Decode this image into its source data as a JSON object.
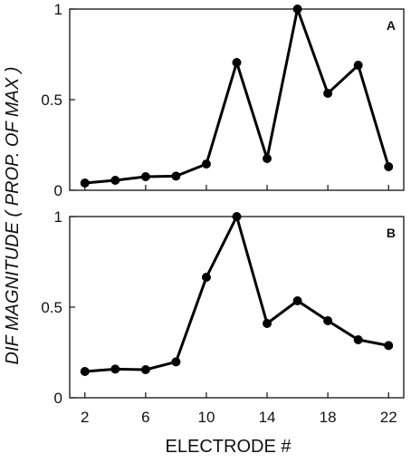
{
  "chart_data": [
    {
      "type": "line",
      "panel_label": "A",
      "x": [
        2,
        4,
        6,
        8,
        10,
        12,
        14,
        16,
        18,
        20,
        22
      ],
      "series": [
        {
          "values": [
            0.04,
            0.055,
            0.075,
            0.078,
            0.145,
            0.705,
            0.175,
            1.0,
            0.535,
            0.69,
            0.13
          ]
        }
      ],
      "xlim": [
        1,
        23
      ],
      "ylim": [
        0,
        1
      ],
      "yticks": [
        "0",
        "0.5",
        "1"
      ],
      "xticks": [],
      "grid": false,
      "color": "#000000"
    },
    {
      "type": "line",
      "panel_label": "B",
      "x": [
        2,
        4,
        6,
        8,
        10,
        12,
        14,
        16,
        18,
        20,
        22
      ],
      "series": [
        {
          "values": [
            0.145,
            0.158,
            0.155,
            0.198,
            0.665,
            1.0,
            0.41,
            0.535,
            0.425,
            0.32,
            0.288
          ]
        }
      ],
      "xlim": [
        1,
        23
      ],
      "ylim": [
        0,
        1
      ],
      "yticks": [
        "0",
        "0.5",
        "1"
      ],
      "xticks": [
        "2",
        "6",
        "10",
        "14",
        "18",
        "22"
      ],
      "grid": false,
      "color": "#000000"
    }
  ],
  "ylabel": "DIF MAGNITUDE  ( PROP. OF MAX )",
  "xlabel": "ELECTRODE #"
}
